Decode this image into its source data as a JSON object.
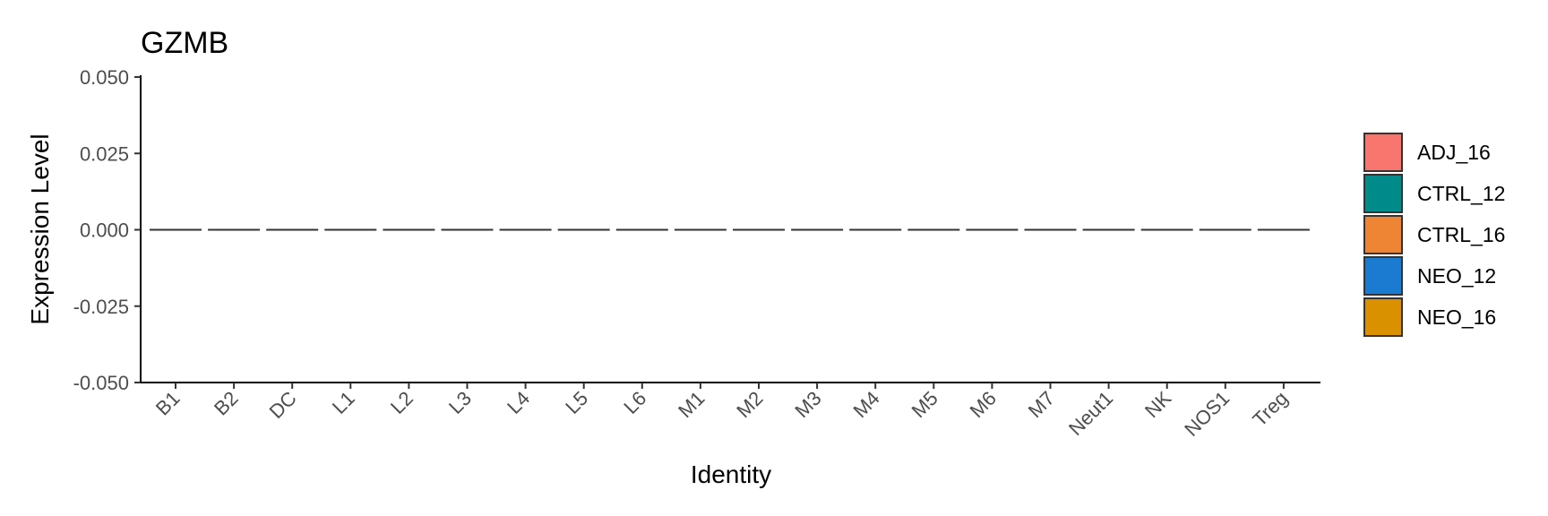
{
  "chart_data": {
    "type": "violin",
    "title": "GZMB",
    "xlabel": "Identity",
    "ylabel": "Expression Level",
    "ylim": [
      -0.05,
      0.05
    ],
    "yticks": [
      0.05,
      0.025,
      0,
      -0.025,
      -0.05
    ],
    "ytick_labels": [
      "0.050",
      "0.025",
      "0.000",
      "-0.025",
      "-0.050"
    ],
    "categories": [
      "B1",
      "B2",
      "DC",
      "L1",
      "L2",
      "L3",
      "L4",
      "L5",
      "L6",
      "M1",
      "M2",
      "M3",
      "M4",
      "M5",
      "M6",
      "M7",
      "Neut1",
      "NK",
      "NOS1",
      "Treg"
    ],
    "values": [
      0,
      0,
      0,
      0,
      0,
      0,
      0,
      0,
      0,
      0,
      0,
      0,
      0,
      0,
      0,
      0,
      0,
      0,
      0,
      0
    ],
    "legend": [
      {
        "name": "ADJ_16",
        "color": "#F8766D"
      },
      {
        "name": "CTRL_12",
        "color": "#008B8B"
      },
      {
        "name": "CTRL_16",
        "color": "#EE8535"
      },
      {
        "name": "NEO_12",
        "color": "#1A7BD1"
      },
      {
        "name": "NEO_16",
        "color": "#D99100"
      }
    ],
    "legend_position": "right",
    "grid": false
  }
}
